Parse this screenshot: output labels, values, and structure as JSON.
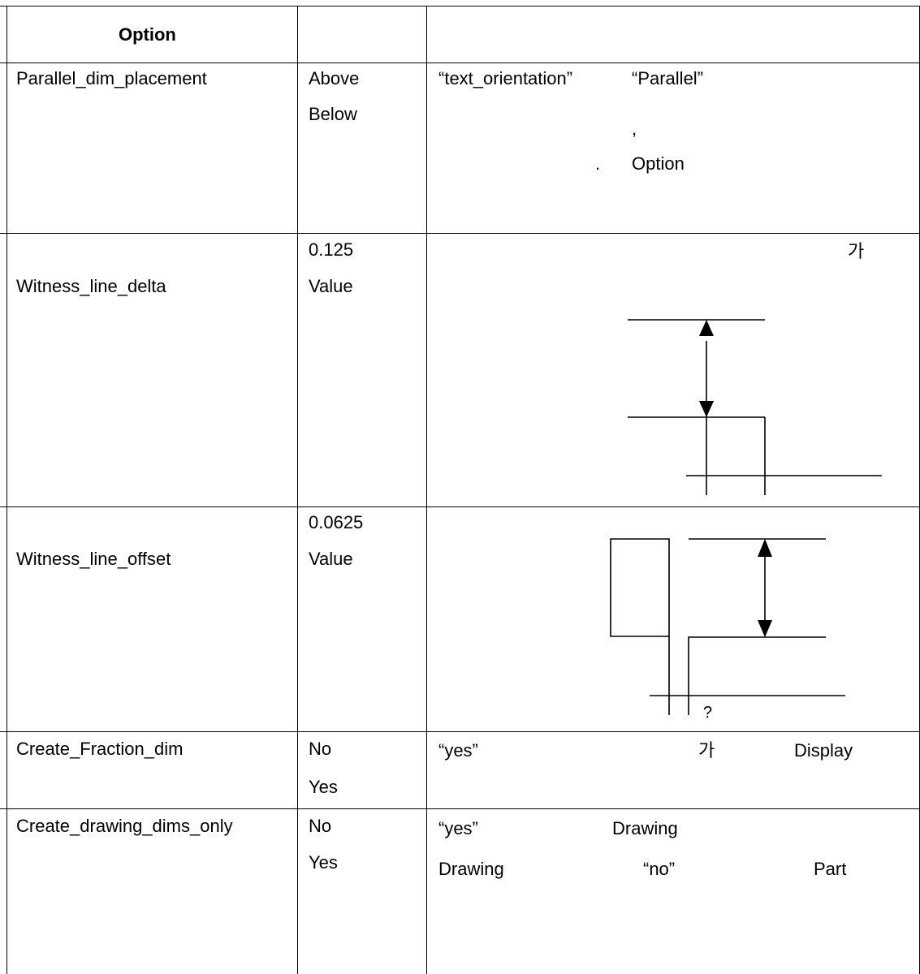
{
  "header": {
    "option_label": "Option",
    "col2": "",
    "col3": ""
  },
  "rows": [
    {
      "option": "Parallel_dim_placement",
      "values": [
        "Above",
        "Below"
      ],
      "desc": {
        "a": "“text_orientation”",
        "b": "“Parallel”",
        "c": ",",
        "d": ".",
        "e": "Option"
      }
    },
    {
      "option": "Witness_line_delta",
      "values": [
        "0.125",
        "Value"
      ],
      "desc": {
        "a": "가"
      }
    },
    {
      "option": "Witness_line_offset",
      "values": [
        "0.0625",
        "Value"
      ],
      "desc": {
        "a": "?"
      }
    },
    {
      "option": "Create_Fraction_dim",
      "values": [
        "No",
        "Yes"
      ],
      "desc": {
        "a": "“yes”",
        "b": "가",
        "c": "Display"
      }
    },
    {
      "option": "Create_drawing_dims_only",
      "values": [
        "No",
        "Yes"
      ],
      "desc": {
        "a": "“yes”",
        "b": "Drawing",
        "c": "Drawing",
        "d": "“no”",
        "e": "Part"
      }
    }
  ]
}
